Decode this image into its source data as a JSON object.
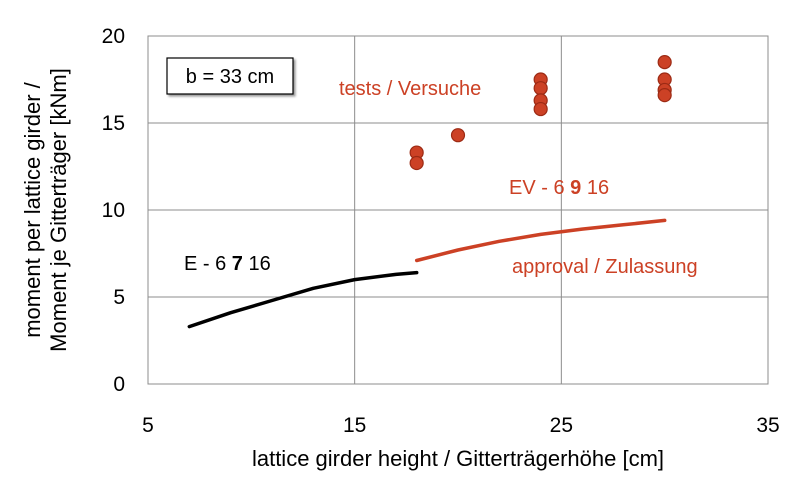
{
  "chart_data": {
    "type": "scatter",
    "xlabel": "lattice girder height / Gitterträgerhöhe [cm]",
    "ylabel_line1": "moment per lattice girder /",
    "ylabel_line2": "Moment je Gitterträger [kNm]",
    "xlim": [
      5,
      35
    ],
    "ylim": [
      0,
      20
    ],
    "xticks": [
      5,
      15,
      25,
      35
    ],
    "yticks": [
      0,
      5,
      10,
      15,
      20
    ],
    "grid": true,
    "colors": {
      "red": "#cc4125",
      "black": "#000000",
      "grid": "#8c8c8c",
      "dot_edge": "#9c2a14"
    },
    "series": [
      {
        "name": "E - 6 7 16",
        "kind": "line",
        "color": "#000000",
        "x": [
          7,
          9,
          11,
          13,
          15,
          17,
          18
        ],
        "y": [
          3.3,
          4.1,
          4.8,
          5.5,
          6.0,
          6.3,
          6.4
        ]
      },
      {
        "name": "EV - 6 9 16",
        "kind": "line",
        "color": "#cc4125",
        "x": [
          18,
          20,
          22,
          24,
          26,
          28,
          30
        ],
        "y": [
          7.1,
          7.7,
          8.2,
          8.6,
          8.9,
          9.15,
          9.4
        ]
      },
      {
        "name": "tests / Versuche",
        "kind": "scatter",
        "color": "#cc4125",
        "x": [
          18,
          18,
          20,
          24,
          24,
          24,
          24,
          30,
          30,
          30,
          30
        ],
        "y": [
          13.3,
          12.7,
          14.3,
          17.5,
          17.0,
          16.3,
          15.8,
          18.5,
          17.5,
          16.9,
          16.6
        ]
      }
    ],
    "annotations": {
      "box": "b = 33 cm",
      "tests": "tests / Versuche",
      "ev_prefix": "EV - 6 ",
      "ev_bold": "9",
      "ev_suffix": " 16",
      "approval": "approval / Zulassung",
      "e_prefix": "E - 6 ",
      "e_bold": "7",
      "e_suffix": " 16"
    }
  }
}
